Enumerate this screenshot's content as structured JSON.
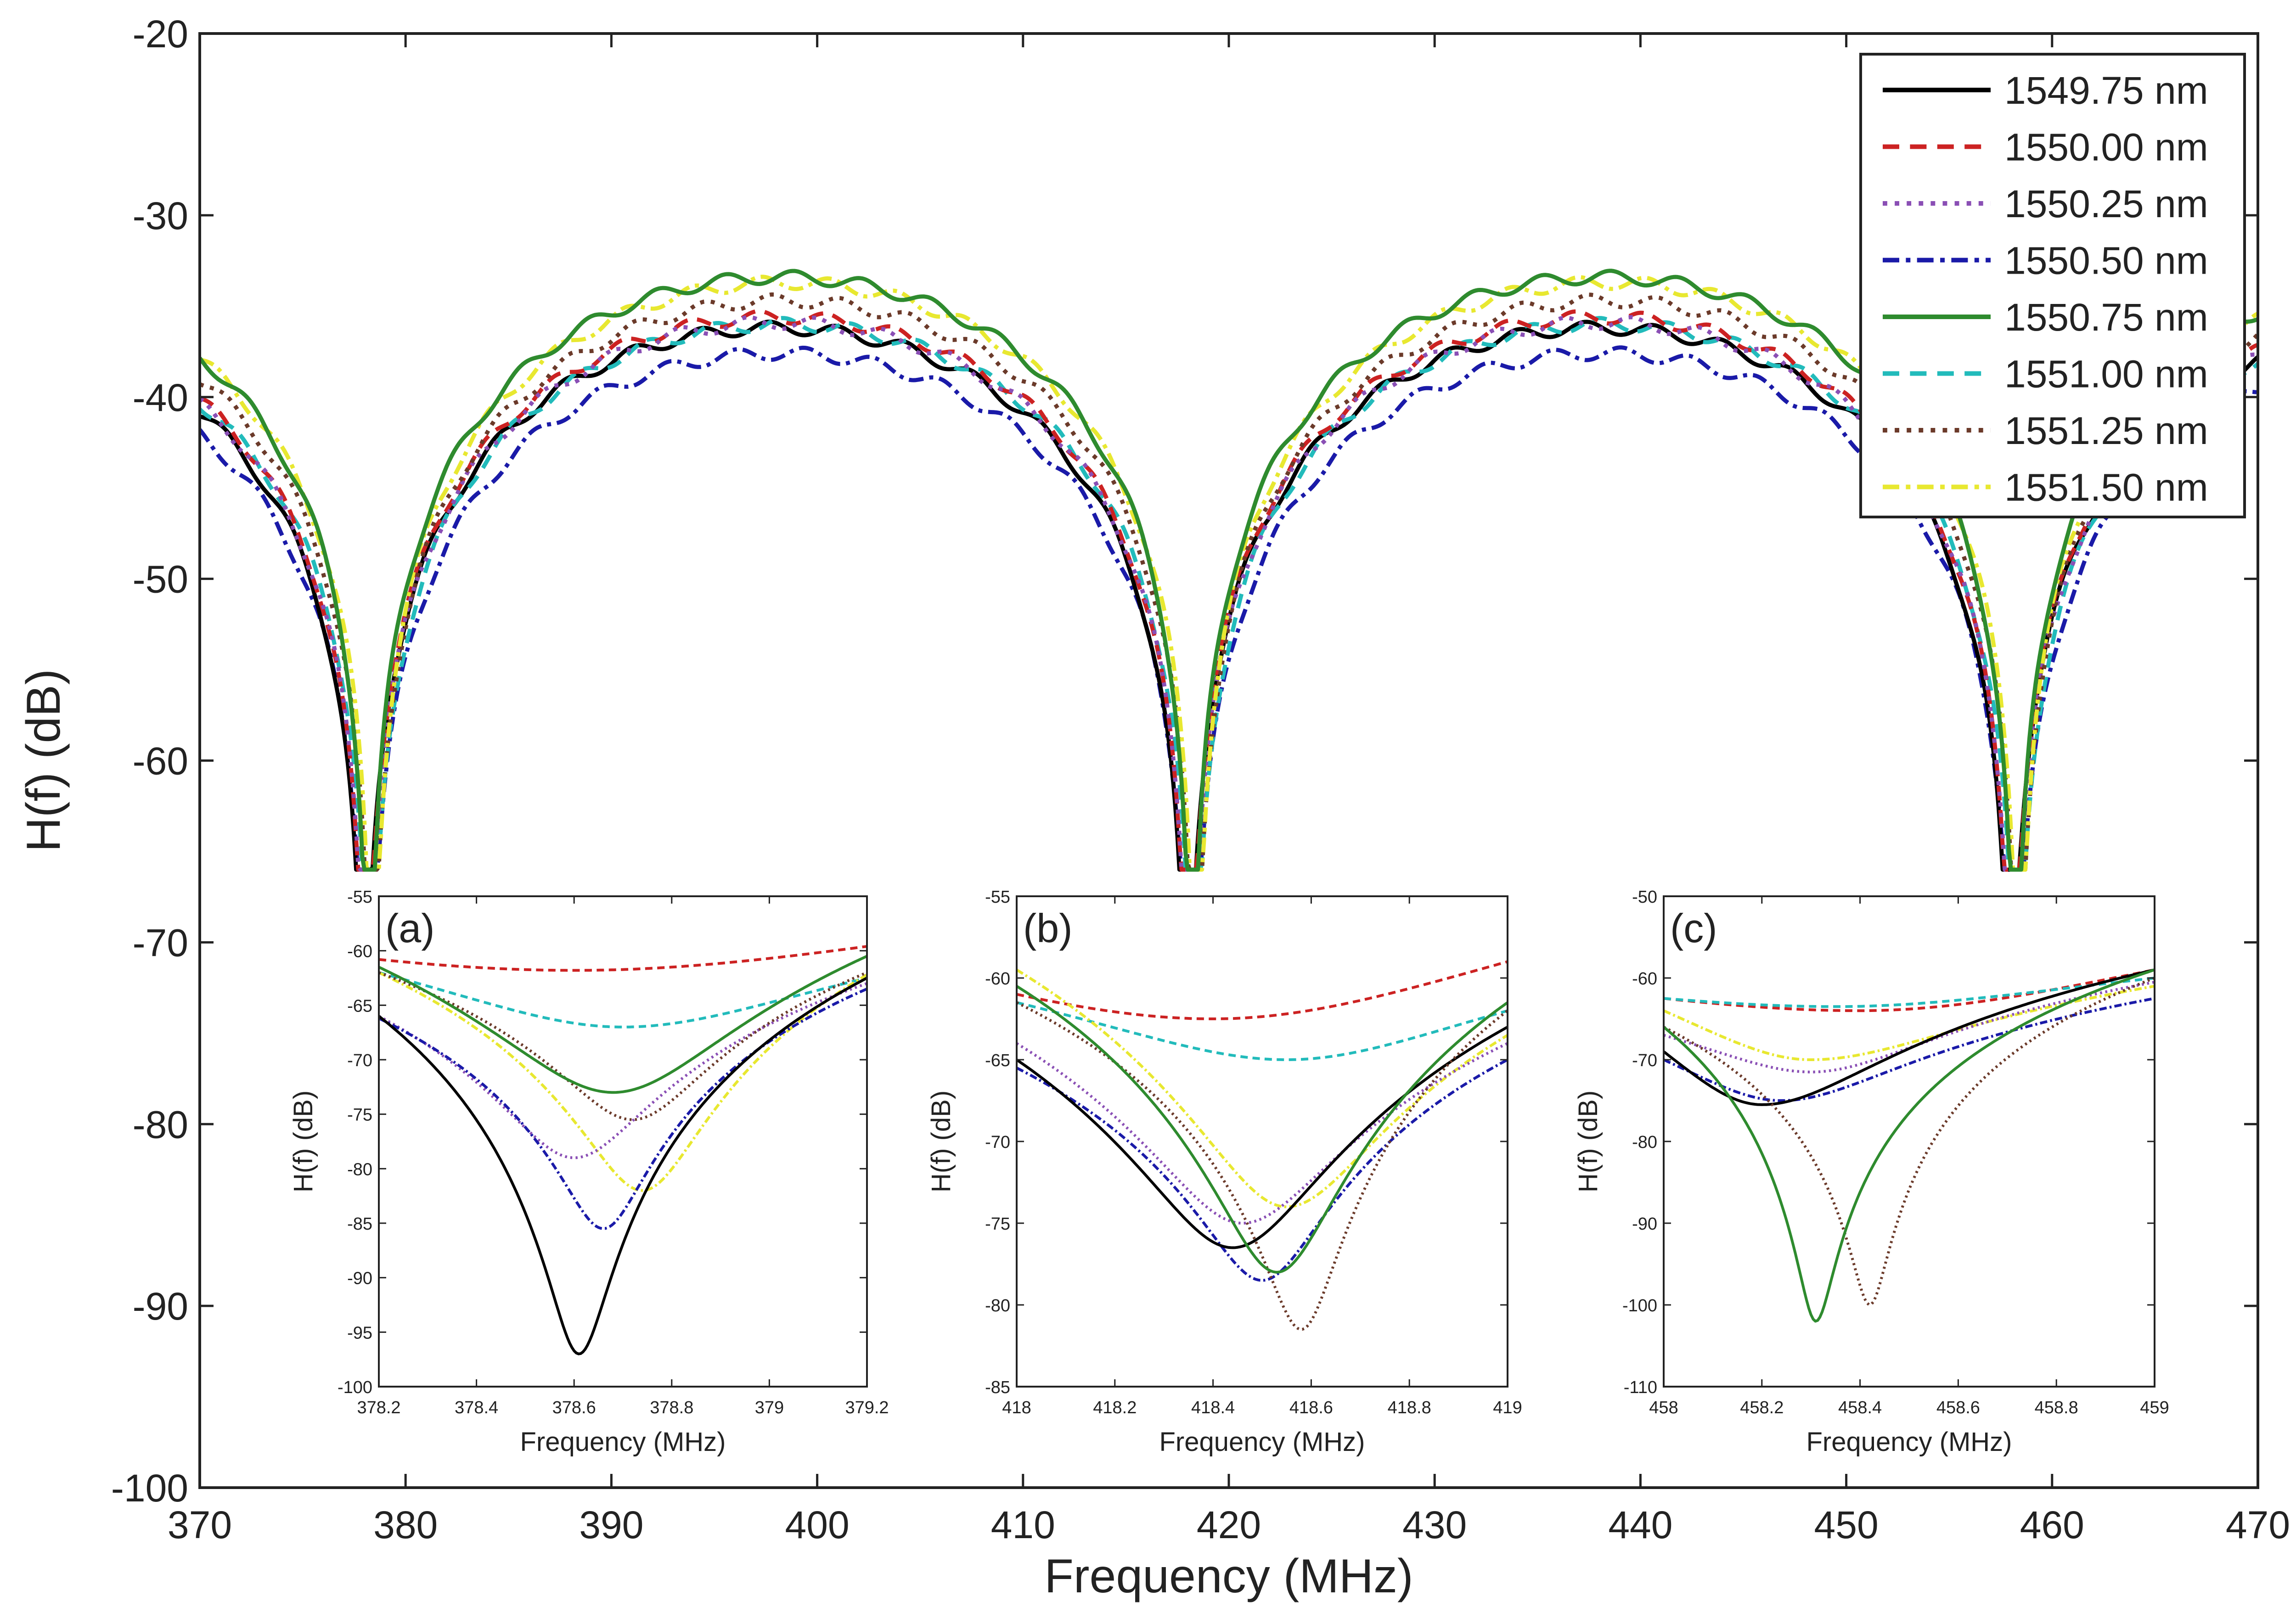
{
  "chart_data": [
    {
      "id": "main",
      "type": "line",
      "title": "",
      "xlabel": "Frequency (MHz)",
      "ylabel": "H(f) (dB)",
      "xlim": [
        370,
        470
      ],
      "ylim": [
        -100,
        -20
      ],
      "xticks": [
        370,
        380,
        390,
        400,
        410,
        420,
        430,
        440,
        450,
        460,
        470
      ],
      "yticks": [
        -20,
        -30,
        -40,
        -50,
        -60,
        -70,
        -80,
        -90,
        -100
      ],
      "legend_position": "top-right",
      "notch_centers": [
        378.2,
        418.2,
        458.2
      ],
      "series": [
        {
          "name": "1549.75 nm",
          "color": "#000000",
          "dash": "solid",
          "peak_db": -36.2
        },
        {
          "name": "1550.00 nm",
          "color": "#cc2222",
          "dash": "dash",
          "peak_db": -35.6
        },
        {
          "name": "1550.25 nm",
          "color": "#8a4fb5",
          "dash": "dot",
          "peak_db": -35.9
        },
        {
          "name": "1550.50 nm",
          "color": "#1a1aa8",
          "dash": "dashdot",
          "peak_db": -37.6
        },
        {
          "name": "1550.75 nm",
          "color": "#2e8b2e",
          "dash": "solid",
          "peak_db": -33.4
        },
        {
          "name": "1551.00 nm",
          "color": "#22bbbb",
          "dash": "dash",
          "peak_db": -36.0
        },
        {
          "name": "1551.25 nm",
          "color": "#6b3a2a",
          "dash": "dot",
          "peak_db": -34.7
        },
        {
          "name": "1551.50 nm",
          "color": "#e8e830",
          "dash": "dashdot",
          "peak_db": -33.7
        }
      ]
    },
    {
      "id": "a",
      "panel_label": "(a)",
      "type": "line",
      "xlabel": "Frequency (MHz)",
      "ylabel": "H(f) (dB)",
      "xlim": [
        378.2,
        379.2
      ],
      "ylim": [
        -100,
        -55
      ],
      "xticks": [
        378.2,
        378.4,
        378.6,
        378.8,
        379,
        379.2
      ],
      "xtick_labels": [
        "378.2",
        "378.4",
        "378.6",
        "378.8",
        "379",
        "379.2"
      ],
      "yticks": [
        -55,
        -60,
        -65,
        -70,
        -75,
        -80,
        -85,
        -90,
        -95,
        -100
      ],
      "series": [
        {
          "name": "1549.75 nm",
          "min_x": 378.61,
          "min_y": -97,
          "y_left": -66,
          "y_right": -62.5,
          "width": 0.05
        },
        {
          "name": "1550.00 nm",
          "min_x": 378.6,
          "min_y": -61.8,
          "y_left": -60.8,
          "y_right": -59.6,
          "width": 0.8
        },
        {
          "name": "1550.25 nm",
          "min_x": 378.6,
          "min_y": -79,
          "y_left": -66,
          "y_right": -63,
          "width": 0.12
        },
        {
          "name": "1550.50 nm",
          "min_x": 378.66,
          "min_y": -85.5,
          "y_left": -66.2,
          "y_right": -63.5,
          "width": 0.07
        },
        {
          "name": "1550.75 nm",
          "min_x": 378.68,
          "min_y": -73,
          "y_left": -61.5,
          "y_right": -60.5,
          "width": 0.2
        },
        {
          "name": "1551.00 nm",
          "min_x": 378.7,
          "min_y": -67,
          "y_left": -62,
          "y_right": -62.5,
          "width": 0.35
        },
        {
          "name": "1551.25 nm",
          "min_x": 378.72,
          "min_y": -75.5,
          "y_left": -62,
          "y_right": -62,
          "width": 0.12
        },
        {
          "name": "1551.50 nm",
          "min_x": 378.74,
          "min_y": -82,
          "y_left": -62,
          "y_right": -62.2,
          "width": 0.1
        }
      ]
    },
    {
      "id": "b",
      "panel_label": "(b)",
      "type": "line",
      "xlabel": "Frequency (MHz)",
      "ylabel": "H(f) (dB)",
      "xlim": [
        418,
        419
      ],
      "ylim": [
        -85,
        -55
      ],
      "xticks": [
        418,
        418.2,
        418.4,
        418.6,
        418.8,
        419
      ],
      "xtick_labels": [
        "418",
        "418.2",
        "418.4",
        "418.6",
        "418.8",
        "419"
      ],
      "yticks": [
        -55,
        -60,
        -65,
        -70,
        -75,
        -80,
        -85
      ],
      "series": [
        {
          "name": "1549.75 nm",
          "min_x": 418.44,
          "min_y": -76.5,
          "y_left": -65,
          "y_right": -63,
          "width": 0.15
        },
        {
          "name": "1550.00 nm",
          "min_x": 418.4,
          "min_y": -62.5,
          "y_left": -61,
          "y_right": -59,
          "width": 0.6
        },
        {
          "name": "1550.25 nm",
          "min_x": 418.46,
          "min_y": -75,
          "y_left": -64,
          "y_right": -64,
          "width": 0.15
        },
        {
          "name": "1550.50 nm",
          "min_x": 418.5,
          "min_y": -78.5,
          "y_left": -65.5,
          "y_right": -65,
          "width": 0.1
        },
        {
          "name": "1550.75 nm",
          "min_x": 418.53,
          "min_y": -78,
          "y_left": -60.5,
          "y_right": -61.5,
          "width": 0.1
        },
        {
          "name": "1551.00 nm",
          "min_x": 418.55,
          "min_y": -65,
          "y_left": -61.5,
          "y_right": -62,
          "width": 0.35
        },
        {
          "name": "1551.25 nm",
          "min_x": 418.58,
          "min_y": -81.5,
          "y_left": -61.5,
          "y_right": -62,
          "width": 0.06
        },
        {
          "name": "1551.50 nm",
          "min_x": 418.55,
          "min_y": -74,
          "y_left": -59.5,
          "y_right": -63.5,
          "width": 0.15
        }
      ]
    },
    {
      "id": "c",
      "panel_label": "(c)",
      "type": "line",
      "xlabel": "Frequency (MHz)",
      "ylabel": "H(f) (dB)",
      "xlim": [
        458,
        459
      ],
      "ylim": [
        -110,
        -50
      ],
      "xticks": [
        458,
        458.2,
        458.4,
        458.6,
        458.8,
        459
      ],
      "xtick_labels": [
        "458",
        "458.2",
        "458.4",
        "458.6",
        "458.8",
        "459"
      ],
      "yticks": [
        -50,
        -60,
        -70,
        -80,
        -90,
        -100,
        -110
      ],
      "series": [
        {
          "name": "1549.75 nm",
          "min_x": 458.2,
          "min_y": -75.5,
          "y_left": -69,
          "y_right": -59,
          "width": 0.2
        },
        {
          "name": "1550.00 nm",
          "min_x": 458.4,
          "min_y": -64,
          "y_left": -62.5,
          "y_right": -59,
          "width": 0.6
        },
        {
          "name": "1550.25 nm",
          "min_x": 458.3,
          "min_y": -71.5,
          "y_left": -67,
          "y_right": -60.5,
          "width": 0.2
        },
        {
          "name": "1550.50 nm",
          "min_x": 458.24,
          "min_y": -75,
          "y_left": -70,
          "y_right": -62.5,
          "width": 0.2
        },
        {
          "name": "1550.75 nm",
          "min_x": 458.31,
          "min_y": -102,
          "y_left": -66,
          "y_right": -59,
          "width": 0.03
        },
        {
          "name": "1551.00 nm",
          "min_x": 458.35,
          "min_y": -63.5,
          "y_left": -62.5,
          "y_right": -60,
          "width": 0.5
        },
        {
          "name": "1551.25 nm",
          "min_x": 458.42,
          "min_y": -100,
          "y_left": -66,
          "y_right": -60,
          "width": 0.03
        },
        {
          "name": "1551.50 nm",
          "min_x": 458.3,
          "min_y": -70,
          "y_left": -64,
          "y_right": -61,
          "width": 0.25
        }
      ]
    }
  ]
}
